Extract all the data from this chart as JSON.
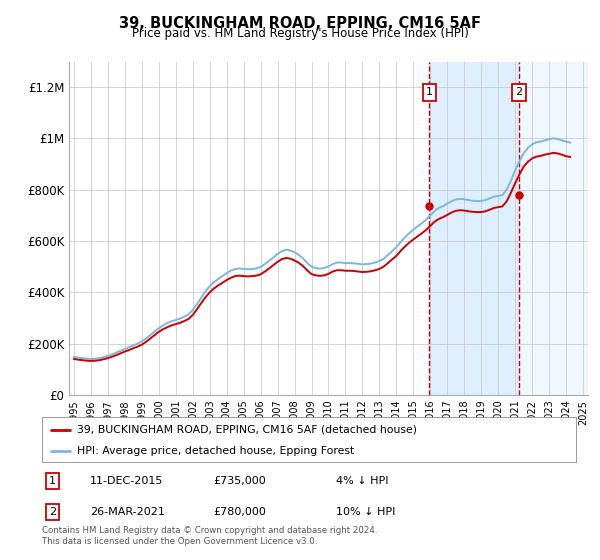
{
  "title": "39, BUCKINGHAM ROAD, EPPING, CM16 5AF",
  "subtitle": "Price paid vs. HM Land Registry's House Price Index (HPI)",
  "legend_line1": "39, BUCKINGHAM ROAD, EPPING, CM16 5AF (detached house)",
  "legend_line2": "HPI: Average price, detached house, Epping Forest",
  "footnote": "Contains HM Land Registry data © Crown copyright and database right 2024.\nThis data is licensed under the Open Government Licence v3.0.",
  "sale1_date": "11-DEC-2015",
  "sale1_price": "£735,000",
  "sale1_note": "4% ↓ HPI",
  "sale2_date": "26-MAR-2021",
  "sale2_price": "£780,000",
  "sale2_note": "10% ↓ HPI",
  "hpi_color": "#7ab8d9",
  "price_color": "#cc0000",
  "sale_vline_color": "#cc0000",
  "highlight_color": "#ddeeff",
  "ylim": [
    0,
    1300000
  ],
  "yticks": [
    0,
    200000,
    400000,
    600000,
    800000,
    1000000,
    1200000
  ],
  "ytick_labels": [
    "£0",
    "£200K",
    "£400K",
    "£600K",
    "£800K",
    "£1M",
    "£1.2M"
  ],
  "sale1_x": 2015.95,
  "sale1_y": 735000,
  "sale2_x": 2021.23,
  "sale2_y": 780000,
  "hpi_years": [
    1995.0,
    1995.25,
    1995.5,
    1995.75,
    1996.0,
    1996.25,
    1996.5,
    1996.75,
    1997.0,
    1997.25,
    1997.5,
    1997.75,
    1998.0,
    1998.25,
    1998.5,
    1998.75,
    1999.0,
    1999.25,
    1999.5,
    1999.75,
    2000.0,
    2000.25,
    2000.5,
    2000.75,
    2001.0,
    2001.25,
    2001.5,
    2001.75,
    2002.0,
    2002.25,
    2002.5,
    2002.75,
    2003.0,
    2003.25,
    2003.5,
    2003.75,
    2004.0,
    2004.25,
    2004.5,
    2004.75,
    2005.0,
    2005.25,
    2005.5,
    2005.75,
    2006.0,
    2006.25,
    2006.5,
    2006.75,
    2007.0,
    2007.25,
    2007.5,
    2007.75,
    2008.0,
    2008.25,
    2008.5,
    2008.75,
    2009.0,
    2009.25,
    2009.5,
    2009.75,
    2010.0,
    2010.25,
    2010.5,
    2010.75,
    2011.0,
    2011.25,
    2011.5,
    2011.75,
    2012.0,
    2012.25,
    2012.5,
    2012.75,
    2013.0,
    2013.25,
    2013.5,
    2013.75,
    2014.0,
    2014.25,
    2014.5,
    2014.75,
    2015.0,
    2015.25,
    2015.5,
    2015.75,
    2016.0,
    2016.25,
    2016.5,
    2016.75,
    2017.0,
    2017.25,
    2017.5,
    2017.75,
    2018.0,
    2018.25,
    2018.5,
    2018.75,
    2019.0,
    2019.25,
    2019.5,
    2019.75,
    2020.0,
    2020.25,
    2020.5,
    2020.75,
    2021.0,
    2021.25,
    2021.5,
    2021.75,
    2022.0,
    2022.25,
    2022.5,
    2022.75,
    2023.0,
    2023.25,
    2023.5,
    2023.75,
    2024.0,
    2024.25
  ],
  "hpi_values": [
    148000,
    145000,
    143000,
    141000,
    140000,
    141000,
    143000,
    147000,
    152000,
    158000,
    165000,
    172000,
    179000,
    186000,
    193000,
    200000,
    208000,
    220000,
    233000,
    247000,
    260000,
    271000,
    280000,
    287000,
    292000,
    297000,
    305000,
    314000,
    331000,
    354000,
    379000,
    404000,
    424000,
    440000,
    452000,
    463000,
    475000,
    485000,
    491000,
    493000,
    491000,
    490000,
    491000,
    493000,
    499000,
    510000,
    523000,
    536000,
    550000,
    560000,
    566000,
    563000,
    556000,
    546000,
    532000,
    514000,
    500000,
    494000,
    492000,
    495000,
    501000,
    510000,
    516000,
    516000,
    514000,
    514000,
    513000,
    511000,
    509000,
    510000,
    512000,
    516000,
    522000,
    531000,
    545000,
    560000,
    576000,
    596000,
    614000,
    630000,
    644000,
    657000,
    669000,
    683000,
    700000,
    717000,
    729000,
    736000,
    746000,
    755000,
    762000,
    764000,
    763000,
    760000,
    757000,
    756000,
    756000,
    760000,
    766000,
    773000,
    776000,
    779000,
    800000,
    835000,
    875000,
    910000,
    942000,
    963000,
    977000,
    985000,
    988000,
    993000,
    997000,
    1001000,
    998000,
    993000,
    988000,
    984000
  ],
  "price_years": [
    1995.0,
    1995.25,
    1995.5,
    1995.75,
    1996.0,
    1996.25,
    1996.5,
    1996.75,
    1997.0,
    1997.25,
    1997.5,
    1997.75,
    1998.0,
    1998.25,
    1998.5,
    1998.75,
    1999.0,
    1999.25,
    1999.5,
    1999.75,
    2000.0,
    2000.25,
    2000.5,
    2000.75,
    2001.0,
    2001.25,
    2001.5,
    2001.75,
    2002.0,
    2002.25,
    2002.5,
    2002.75,
    2003.0,
    2003.25,
    2003.5,
    2003.75,
    2004.0,
    2004.25,
    2004.5,
    2004.75,
    2005.0,
    2005.25,
    2005.5,
    2005.75,
    2006.0,
    2006.25,
    2006.5,
    2006.75,
    2007.0,
    2007.25,
    2007.5,
    2007.75,
    2008.0,
    2008.25,
    2008.5,
    2008.75,
    2009.0,
    2009.25,
    2009.5,
    2009.75,
    2010.0,
    2010.25,
    2010.5,
    2010.75,
    2011.0,
    2011.25,
    2011.5,
    2011.75,
    2012.0,
    2012.25,
    2012.5,
    2012.75,
    2013.0,
    2013.25,
    2013.5,
    2013.75,
    2014.0,
    2014.25,
    2014.5,
    2014.75,
    2015.0,
    2015.25,
    2015.5,
    2015.75,
    2016.0,
    2016.25,
    2016.5,
    2016.75,
    2017.0,
    2017.25,
    2017.5,
    2017.75,
    2018.0,
    2018.25,
    2018.5,
    2018.75,
    2019.0,
    2019.25,
    2019.5,
    2019.75,
    2020.0,
    2020.25,
    2020.5,
    2020.75,
    2021.0,
    2021.25,
    2021.5,
    2021.75,
    2022.0,
    2022.25,
    2022.5,
    2022.75,
    2023.0,
    2023.25,
    2023.5,
    2023.75,
    2024.0,
    2024.25
  ],
  "price_values": [
    140000,
    137000,
    135000,
    133000,
    132000,
    133000,
    135000,
    139000,
    143000,
    149000,
    155000,
    162000,
    169000,
    175000,
    182000,
    188000,
    196000,
    207000,
    220000,
    233000,
    246000,
    256000,
    264000,
    271000,
    276000,
    281000,
    288000,
    296000,
    312000,
    334000,
    358000,
    381000,
    400000,
    415000,
    427000,
    437000,
    448000,
    457000,
    463000,
    465000,
    463000,
    462000,
    463000,
    465000,
    470000,
    481000,
    493000,
    506000,
    519000,
    529000,
    534000,
    531000,
    524000,
    515000,
    502000,
    485000,
    471000,
    466000,
    464000,
    466000,
    472000,
    481000,
    486000,
    486000,
    484000,
    484000,
    483000,
    481000,
    479000,
    480000,
    482000,
    486000,
    491000,
    500000,
    514000,
    528000,
    542000,
    561000,
    578000,
    593000,
    606000,
    618000,
    630000,
    643000,
    659000,
    675000,
    686000,
    693000,
    702000,
    711000,
    718000,
    720000,
    719000,
    716000,
    714000,
    713000,
    713000,
    716000,
    722000,
    729000,
    732000,
    735000,
    754000,
    788000,
    825000,
    859000,
    889000,
    909000,
    922000,
    929000,
    932000,
    937000,
    940000,
    944000,
    942000,
    937000,
    931000,
    928000
  ],
  "xtick_years": [
    1995,
    1996,
    1997,
    1998,
    1999,
    2000,
    2001,
    2002,
    2003,
    2004,
    2005,
    2006,
    2007,
    2008,
    2009,
    2010,
    2011,
    2012,
    2013,
    2014,
    2015,
    2016,
    2017,
    2018,
    2019,
    2020,
    2021,
    2022,
    2023,
    2024,
    2025
  ]
}
